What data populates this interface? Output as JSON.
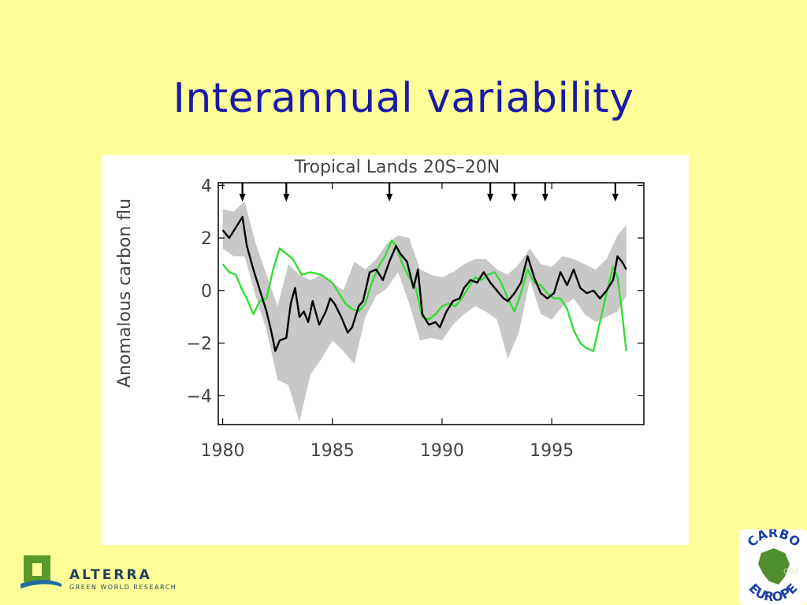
{
  "slide": {
    "title": "Interannual variability"
  },
  "logos": {
    "alterra": {
      "name": "ALTERRA",
      "tagline": "GREEN WORLD RESEARCH"
    },
    "carbo_europe": {
      "top_text": "CARBO",
      "bottom_text": "EUROPE",
      "badge": "CO2"
    }
  },
  "colors": {
    "background": "#ffff99",
    "title": "#1a1aa6",
    "series_black": "#000000",
    "series_green": "#33dd33",
    "uncertainty_band": "#c8c8c8"
  },
  "chart_data": {
    "type": "line",
    "title": "Tropical Lands 20S–20N",
    "ylabel": "Anomalous carbon flu",
    "xlabel": "",
    "xlim": [
      1979.8,
      1999.2
    ],
    "ylim": [
      -5.1,
      4.1
    ],
    "x_ticks": [
      1980,
      1985,
      1990,
      1995
    ],
    "y_ticks": [
      4,
      2,
      0,
      -2,
      -4
    ],
    "y_tick_labels": [
      "4",
      "2",
      "0",
      "−2",
      "−4"
    ],
    "grid": false,
    "event_arrows_x": [
      1980.9,
      1982.9,
      1987.6,
      1992.2,
      1993.3,
      1994.7,
      1997.9
    ],
    "series": [
      {
        "color": "#000000",
        "x": [
          1980.0,
          1980.3,
          1980.6,
          1980.9,
          1981.1,
          1981.4,
          1981.7,
          1982.0,
          1982.2,
          1982.4,
          1982.6,
          1982.9,
          1983.1,
          1983.3,
          1983.5,
          1983.7,
          1983.9,
          1984.1,
          1984.4,
          1984.7,
          1984.9,
          1985.1,
          1985.4,
          1985.7,
          1985.9,
          1986.2,
          1986.4,
          1986.7,
          1987.0,
          1987.3,
          1987.6,
          1987.9,
          1988.1,
          1988.4,
          1988.7,
          1988.9,
          1989.1,
          1989.4,
          1989.7,
          1989.9,
          1990.2,
          1990.5,
          1990.8,
          1991.0,
          1991.3,
          1991.6,
          1991.9,
          1992.2,
          1992.5,
          1992.8,
          1993.0,
          1993.3,
          1993.6,
          1993.9,
          1994.2,
          1994.5,
          1994.8,
          1995.1,
          1995.4,
          1995.7,
          1996.0,
          1996.3,
          1996.6,
          1996.9,
          1997.2,
          1997.5,
          1997.8,
          1998.0,
          1998.2,
          1998.4
        ],
        "values": [
          2.3,
          2.0,
          2.4,
          2.8,
          1.7,
          0.8,
          0.0,
          -0.8,
          -1.5,
          -2.3,
          -1.9,
          -1.8,
          -0.5,
          0.1,
          -1.0,
          -0.8,
          -1.2,
          -0.4,
          -1.3,
          -0.8,
          -0.3,
          -0.5,
          -1.0,
          -1.6,
          -1.4,
          -0.6,
          -0.4,
          0.7,
          0.8,
          0.4,
          1.1,
          1.7,
          1.4,
          1.1,
          0.1,
          0.8,
          -0.9,
          -1.3,
          -1.2,
          -1.4,
          -0.8,
          -0.4,
          -0.3,
          0.1,
          0.4,
          0.3,
          0.7,
          0.3,
          0.0,
          -0.3,
          -0.4,
          -0.1,
          0.3,
          1.3,
          0.5,
          -0.1,
          -0.3,
          -0.1,
          0.7,
          0.2,
          0.8,
          0.1,
          -0.1,
          0.0,
          -0.3,
          0.0,
          0.4,
          1.3,
          1.1,
          0.8
        ]
      },
      {
        "color": "#33dd33",
        "x": [
          1980.0,
          1980.3,
          1980.6,
          1980.9,
          1981.1,
          1981.4,
          1981.7,
          1982.0,
          1982.3,
          1982.6,
          1982.9,
          1983.2,
          1983.6,
          1984.0,
          1984.5,
          1985.0,
          1985.3,
          1985.6,
          1985.9,
          1986.2,
          1986.5,
          1986.8,
          1987.1,
          1987.4,
          1987.7,
          1987.9,
          1988.2,
          1988.5,
          1988.8,
          1989.1,
          1989.4,
          1989.7,
          1990.0,
          1990.3,
          1990.6,
          1990.9,
          1991.2,
          1991.5,
          1991.8,
          1992.1,
          1992.4,
          1992.7,
          1993.0,
          1993.3,
          1993.6,
          1993.9,
          1994.2,
          1994.5,
          1994.8,
          1995.1,
          1995.4,
          1995.7,
          1996.0,
          1996.3,
          1996.6,
          1996.9,
          1997.2,
          1997.5,
          1997.8,
          1998.0,
          1998.2,
          1998.4
        ],
        "values": [
          1.0,
          0.7,
          0.6,
          0.0,
          -0.3,
          -0.9,
          -0.4,
          -0.3,
          0.8,
          1.6,
          1.4,
          1.2,
          0.6,
          0.7,
          0.6,
          0.3,
          -0.1,
          -0.5,
          -0.7,
          -0.8,
          -0.5,
          0.3,
          0.9,
          1.3,
          1.9,
          1.7,
          1.0,
          0.5,
          0.1,
          -1.0,
          -1.1,
          -0.9,
          -0.6,
          -0.5,
          -0.6,
          -0.3,
          0.1,
          0.5,
          0.4,
          0.6,
          0.7,
          0.3,
          -0.3,
          -0.8,
          -0.1,
          0.8,
          0.3,
          0.2,
          -0.1,
          -0.3,
          -0.3,
          -0.7,
          -1.5,
          -2.0,
          -2.2,
          -2.3,
          -1.2,
          -0.1,
          0.9,
          0.5,
          -0.8,
          -2.3
        ]
      }
    ],
    "band": {
      "x": [
        1980.0,
        1980.5,
        1981.0,
        1981.5,
        1982.0,
        1982.5,
        1983.0,
        1983.5,
        1984.0,
        1984.5,
        1985.0,
        1985.5,
        1986.0,
        1986.5,
        1987.0,
        1987.5,
        1988.0,
        1988.5,
        1989.0,
        1989.5,
        1990.0,
        1990.5,
        1991.0,
        1991.5,
        1992.0,
        1992.5,
        1993.0,
        1993.5,
        1994.0,
        1994.5,
        1995.0,
        1995.5,
        1996.0,
        1996.5,
        1997.0,
        1997.5,
        1998.0,
        1998.4
      ],
      "upper": [
        3.1,
        3.0,
        3.4,
        1.8,
        0.6,
        -0.6,
        1.0,
        0.6,
        0.4,
        0.6,
        0.3,
        0.0,
        1.1,
        0.8,
        1.2,
        1.8,
        2.1,
        2.0,
        0.8,
        0.6,
        0.5,
        0.7,
        1.0,
        1.2,
        1.2,
        0.8,
        0.6,
        1.0,
        1.6,
        1.0,
        0.9,
        1.3,
        1.2,
        1.0,
        0.8,
        1.2,
        2.1,
        2.5
      ],
      "lower": [
        1.6,
        1.3,
        1.3,
        -0.2,
        -1.5,
        -3.4,
        -3.6,
        -5.0,
        -3.2,
        -2.6,
        -1.9,
        -2.3,
        -2.8,
        -1.0,
        -0.2,
        0.1,
        0.7,
        -0.5,
        -1.9,
        -1.8,
        -1.9,
        -1.3,
        -0.9,
        -0.6,
        -0.8,
        -1.1,
        -2.6,
        -1.6,
        0.4,
        -0.9,
        -1.1,
        -0.6,
        -0.3,
        -0.9,
        -1.2,
        -1.0,
        -0.8,
        -0.2
      ]
    }
  }
}
